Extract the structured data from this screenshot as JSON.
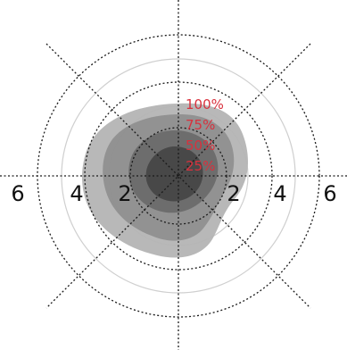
{
  "colors": {
    "background": "#ffffff",
    "grid_ring": "#1a1a1a",
    "grid_ring_light": "#cfcfcf",
    "axis_line": "#1a1a1a",
    "label_text": "#111111",
    "percent_text": "#d8313d",
    "contour_fills": [
      "#b4b4b4",
      "#8f8f8f",
      "#6c6c6c",
      "#474747"
    ]
  },
  "axis_ticks": {
    "left": [
      "6",
      "4",
      "2"
    ],
    "right": [
      "2",
      "4",
      "6"
    ]
  },
  "percent_labels": [
    "100%",
    "75%",
    "50%",
    "25%"
  ],
  "chart_data": {
    "type": "polar-contour",
    "radial_ticks": [
      2,
      4,
      6
    ],
    "radial_range": [
      0,
      7
    ],
    "grid_rings_dotted": [
      2,
      4,
      6
    ],
    "grid_rings_faint": [
      3,
      5
    ],
    "diagonal_gridlines": true,
    "contours": [
      {
        "label": "100%",
        "shade": "light"
      },
      {
        "label": "75%",
        "shade": "medium-light"
      },
      {
        "label": "50%",
        "shade": "medium-dark"
      },
      {
        "label": "25%",
        "shade": "dark"
      }
    ]
  }
}
